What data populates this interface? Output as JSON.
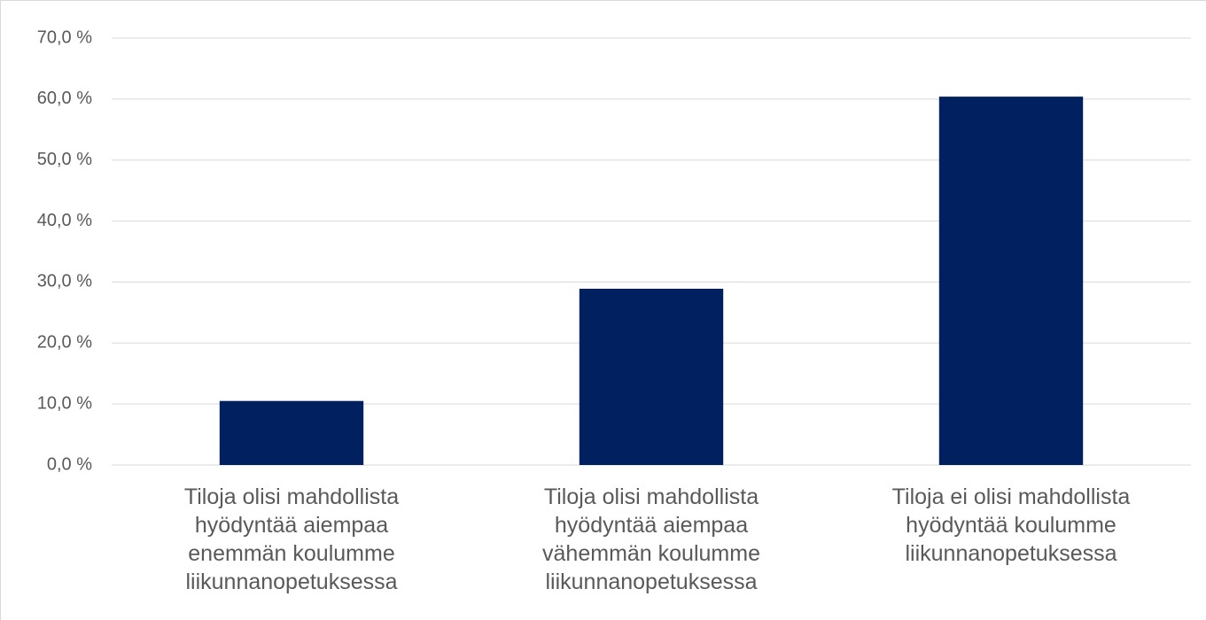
{
  "chart_data": {
    "type": "bar",
    "categories": [
      "Tiloja olisi mahdollista\nhyödyntää aiempaa\nenemmän koulumme\nliikunnanopetuksessa",
      "Tiloja olisi mahdollista\nhyödyntää aiempaa\nvähemmän koulumme\nliikunnanopetuksessa",
      "Tiloja ei olisi mahdollista\nhyödyntää koulumme\nliikunnanopetuksessa"
    ],
    "values": [
      10.5,
      28.9,
      60.4
    ],
    "color": "#002060",
    "ylim": [
      0,
      70
    ],
    "yticks": [
      {
        "value": 0,
        "label": "0,0 %"
      },
      {
        "value": 10,
        "label": "10,0 %"
      },
      {
        "value": 20,
        "label": "20,0 %"
      },
      {
        "value": 30,
        "label": "30,0 %"
      },
      {
        "value": 40,
        "label": "40,0 %"
      },
      {
        "value": 50,
        "label": "50,0 %"
      },
      {
        "value": 60,
        "label": "60,0 %"
      },
      {
        "value": 70,
        "label": "70,0 %"
      }
    ],
    "grid": true
  }
}
